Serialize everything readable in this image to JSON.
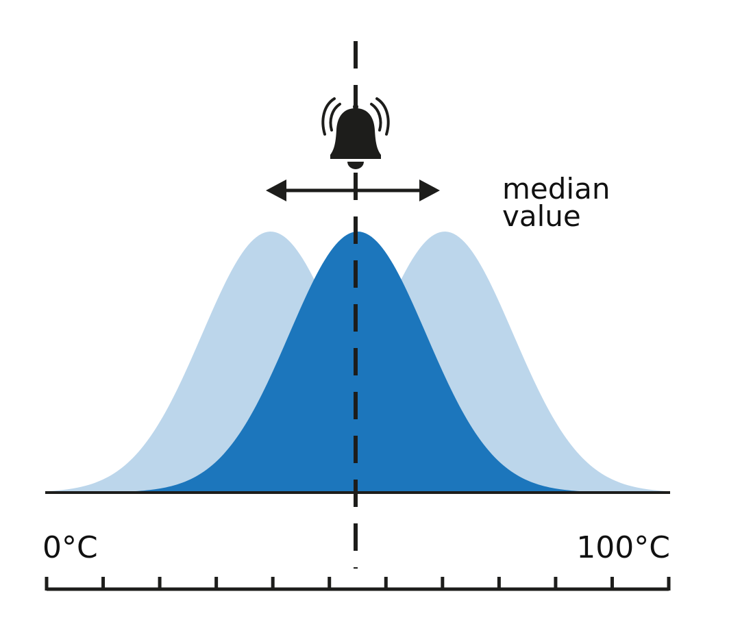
{
  "annotation": {
    "line1": "median",
    "line2": "value"
  },
  "axis": {
    "min_label": "0°C",
    "max_label": "100°C",
    "min": 0,
    "max": 100,
    "tick_count": 12
  },
  "median": 50,
  "icons": {
    "bell": "bell-ringing-icon",
    "arrow": "double-headed-arrow-icon"
  },
  "distributions": [
    {
      "role": "shifted-left",
      "center": 36,
      "color": "#bcd6eb"
    },
    {
      "role": "shifted-right",
      "center": 64,
      "color": "#bcd6eb"
    },
    {
      "role": "central",
      "center": 50,
      "color": "#1c76bc"
    }
  ],
  "colors": {
    "dark": "#1d1d1b",
    "light_blue": "#bcd6eb",
    "blue": "#1c76bc"
  }
}
